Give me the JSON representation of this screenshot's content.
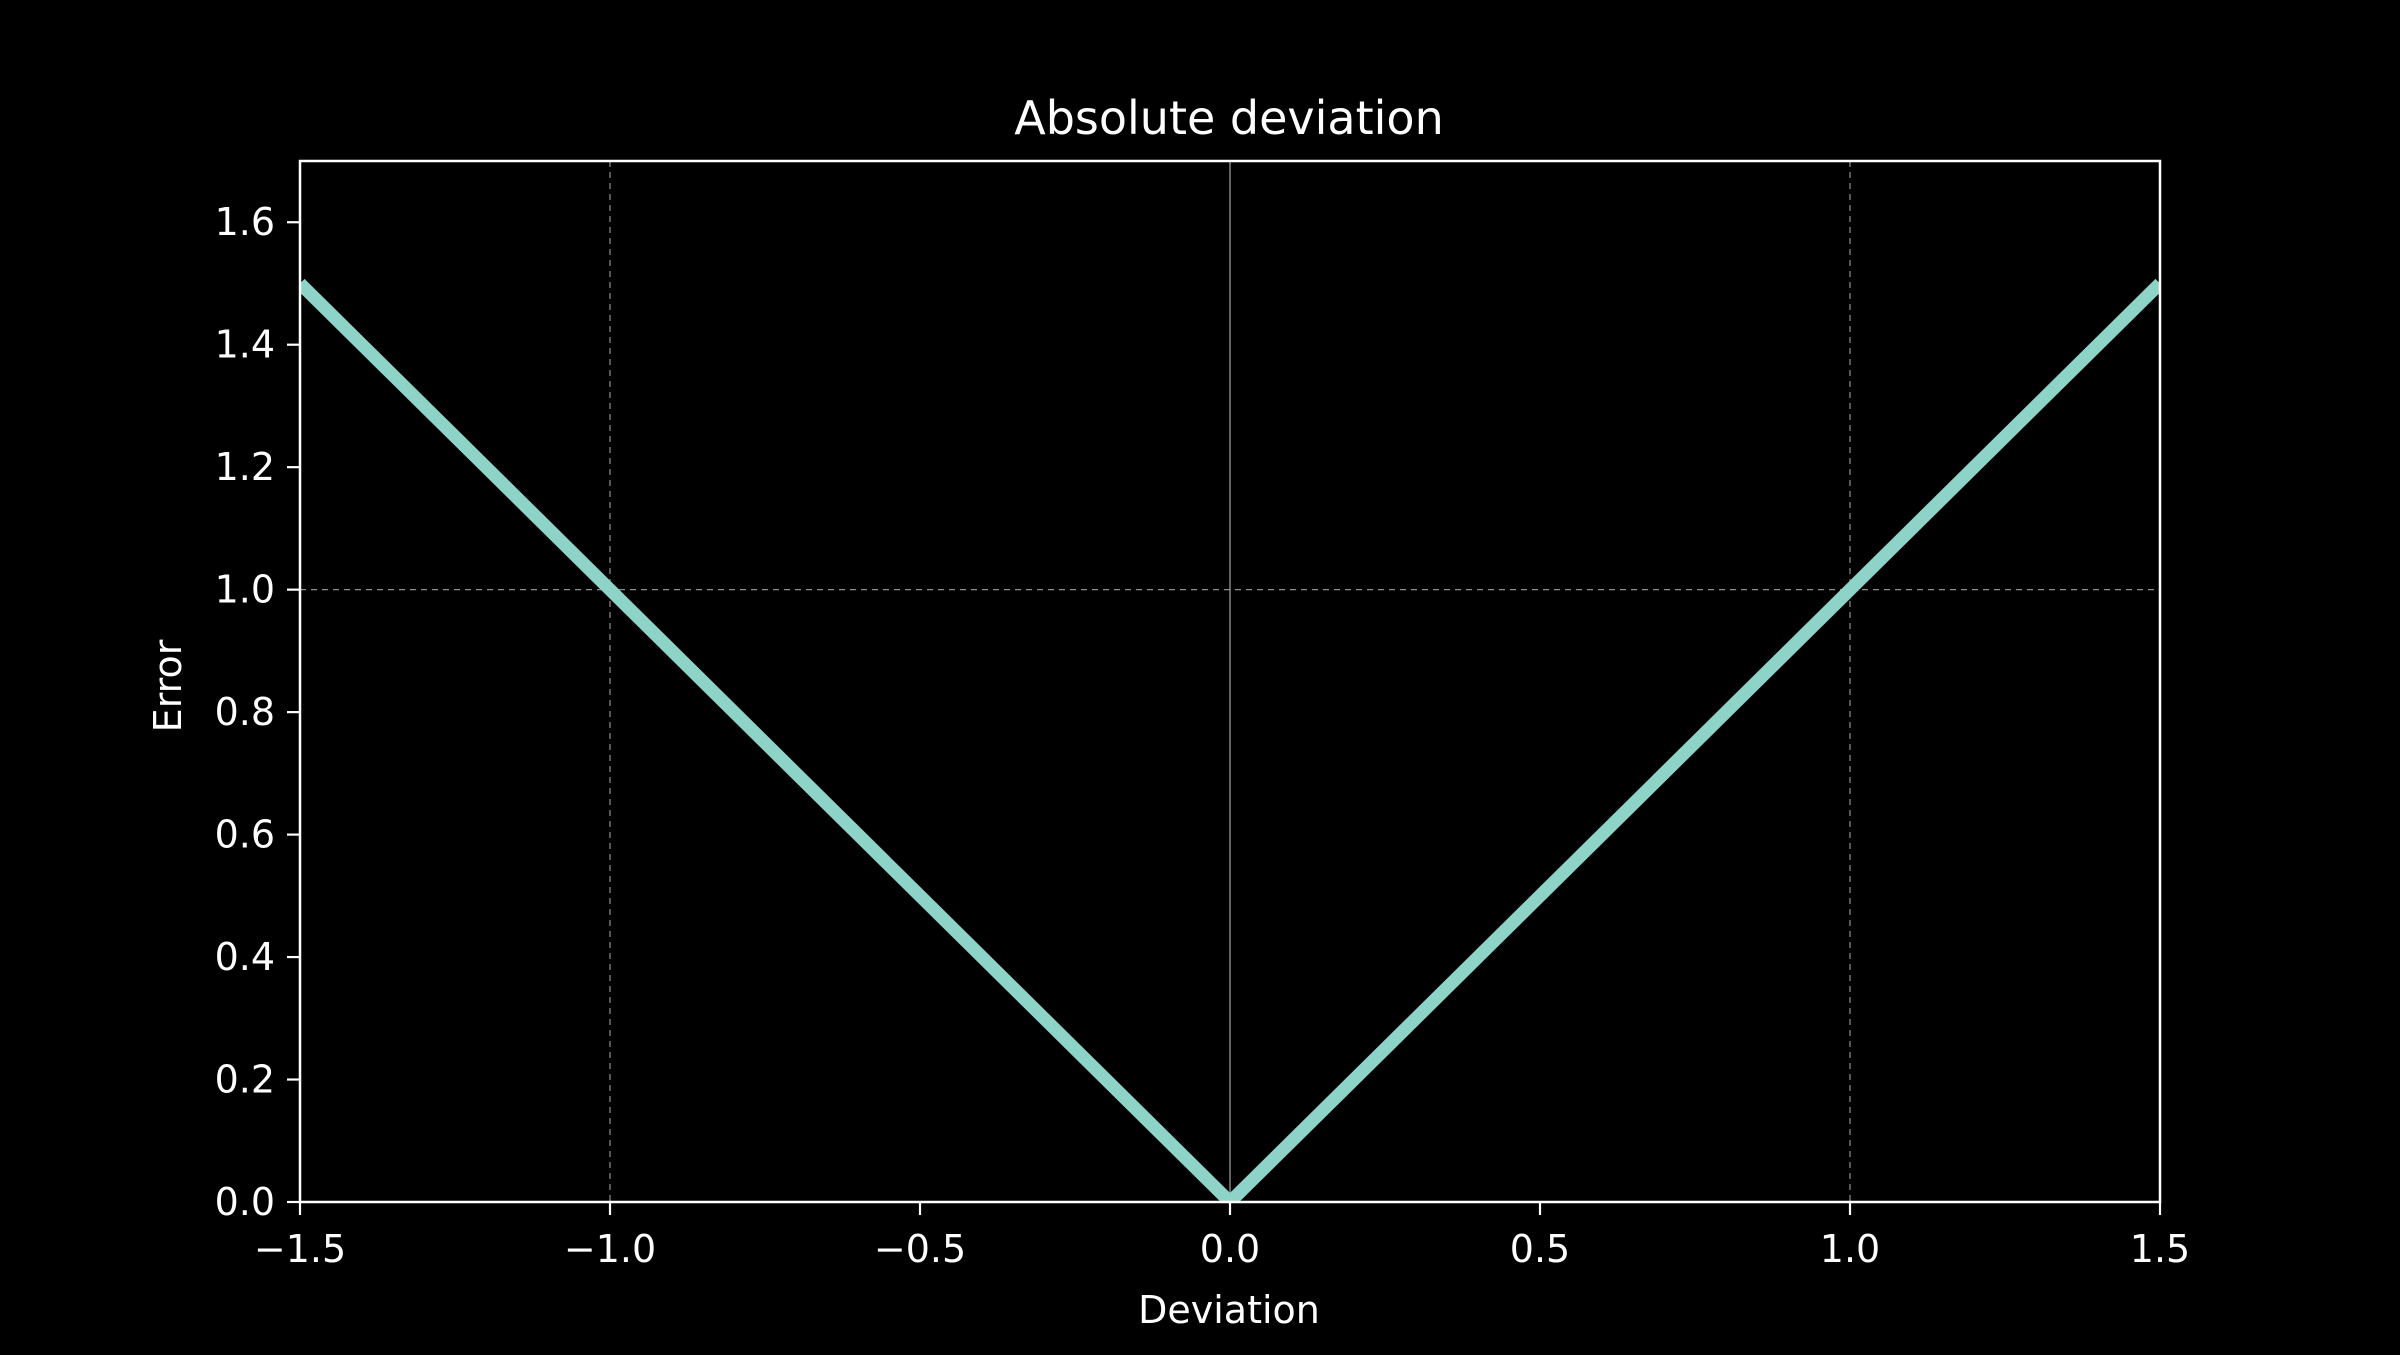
{
  "colors": {
    "background": "#000000",
    "foreground": "#ffffff",
    "line": "#8dd3c7",
    "grid": "#b0b0b0"
  },
  "chart_data": {
    "type": "line",
    "title": "Absolute deviation",
    "xlabel": "Deviation",
    "ylabel": "Error",
    "xlim": [
      -1.5,
      1.5
    ],
    "ylim": [
      0,
      1.7
    ],
    "xticks": [
      -1.5,
      -1.0,
      -0.5,
      0.0,
      0.5,
      1.0,
      1.5
    ],
    "xtick_labels": [
      "−1.5",
      "−1.0",
      "−0.5",
      "0.0",
      "0.5",
      "1.0",
      "1.5"
    ],
    "yticks": [
      0.0,
      0.2,
      0.4,
      0.6,
      0.8,
      1.0,
      1.2,
      1.4,
      1.6
    ],
    "ytick_labels": [
      "0.0",
      "0.2",
      "0.4",
      "0.6",
      "0.8",
      "1.0",
      "1.2",
      "1.4",
      "1.6"
    ],
    "grid": {
      "dashed_vertical": [
        -1.0,
        1.0
      ],
      "dashed_horizontal": [
        1.0
      ],
      "solid_vertical": [
        0.0
      ]
    },
    "series": [
      {
        "x": [
          -1.5,
          0.0,
          1.5
        ],
        "y": [
          1.5,
          0.0,
          1.5
        ]
      }
    ]
  }
}
